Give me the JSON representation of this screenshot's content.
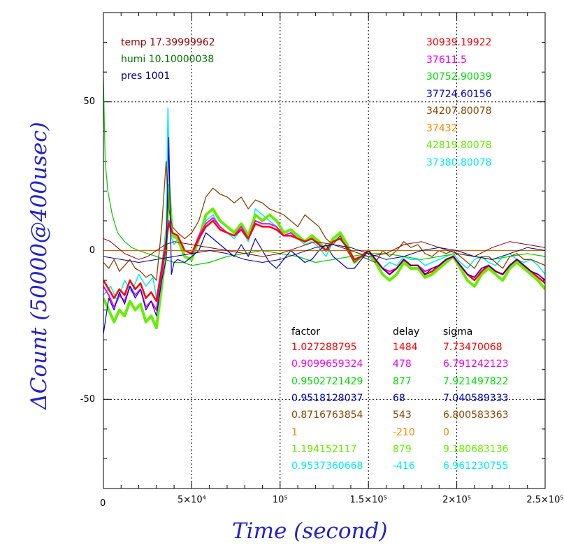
{
  "chart_data": {
    "type": "line",
    "xlabel": "Time (second)",
    "ylabel": "ΔCount (50000@400usec)",
    "xlim": [
      0,
      250000
    ],
    "ylim": [
      -80,
      80
    ],
    "grid": true,
    "x_ticks": [
      {
        "value": 0,
        "label": "0"
      },
      {
        "value": 50000,
        "label": "5×10⁴"
      },
      {
        "value": 100000,
        "label": "10⁵"
      },
      {
        "value": 150000,
        "label": "1.5×10⁵"
      },
      {
        "value": 200000,
        "label": "2×10⁵"
      },
      {
        "value": 250000,
        "label": "2.5×10⁵"
      }
    ],
    "y_ticks": [
      {
        "value": 50,
        "label": "50"
      },
      {
        "value": 0,
        "label": "0"
      },
      {
        "value": -50,
        "label": "-50"
      }
    ],
    "env_legend": [
      {
        "text": "temp 17.39999962",
        "color": "#990000"
      },
      {
        "text": "humi 10.10000038",
        "color": "#007700"
      },
      {
        "text": "pres 1001",
        "color": "#000088"
      }
    ],
    "count_legend": [
      {
        "text": "30939.19922",
        "color": "#ff0000"
      },
      {
        "text": "37611.5",
        "color": "#ee00ee"
      },
      {
        "text": "30752.90039",
        "color": "#00dd00"
      },
      {
        "text": "37724.60156",
        "color": "#0000cc"
      },
      {
        "text": "34207.80078",
        "color": "#884400"
      },
      {
        "text": "37432",
        "color": "#ff8800"
      },
      {
        "text": "42819.80078",
        "color": "#66ee00"
      },
      {
        "text": "37380.80078",
        "color": "#00eeee"
      }
    ],
    "table_headers": [
      "factor",
      "delay",
      "sigma"
    ],
    "table_rows": [
      {
        "factor": "1.027288795",
        "delay": "1484",
        "sigma": "7.73470068",
        "color": "#ff0000"
      },
      {
        "factor": "0.9099659324",
        "delay": "478",
        "sigma": "6.791242123",
        "color": "#ee00ee"
      },
      {
        "factor": "0.9502721429",
        "delay": "877",
        "sigma": "7.921497822",
        "color": "#00dd00"
      },
      {
        "factor": "0.9518128037",
        "delay": "68",
        "sigma": "7.040589333",
        "color": "#0000cc"
      },
      {
        "factor": "0.8716763854",
        "delay": "543",
        "sigma": "6.800583363",
        "color": "#884400"
      },
      {
        "factor": "1",
        "delay": "-210",
        "sigma": "0",
        "color": "#ff8800"
      },
      {
        "factor": "1.194152117",
        "delay": "879",
        "sigma": "9.180683136",
        "color": "#66ee00"
      },
      {
        "factor": "0.9537360668",
        "delay": "-416",
        "sigma": "6.961230755",
        "color": "#00eeee"
      }
    ],
    "series": [
      {
        "color": "#00eeee",
        "width": 1.5,
        "x": [
          0,
          4000,
          8000,
          12000,
          16000,
          20000,
          24000,
          28000,
          30000,
          32000,
          34000,
          35500,
          36500,
          38000,
          40000,
          42000,
          46000,
          50000,
          54000,
          58000,
          62000,
          66000,
          70000,
          74000,
          78000,
          82000,
          86000,
          90000,
          94000,
          98000,
          102000,
          106000,
          110000,
          114000,
          118000,
          122000,
          126000,
          130000,
          134000,
          138000,
          142000,
          146000,
          150000,
          154000,
          158000,
          162000,
          166000,
          170000,
          174000,
          178000,
          182000,
          186000,
          190000,
          194000,
          198000,
          202000,
          206000,
          210000,
          214000,
          218000,
          222000,
          226000,
          230000,
          234000,
          238000,
          242000,
          246000,
          250000
        ],
        "y": [
          -15,
          -12,
          -17,
          -10,
          -14,
          -8,
          -12,
          -9,
          -16,
          -10,
          0,
          8,
          48,
          5,
          2,
          4,
          -2,
          -3,
          3,
          10,
          12,
          8,
          6,
          4,
          7,
          3,
          14,
          12,
          10,
          8,
          5,
          6,
          4,
          2,
          3,
          1,
          -2,
          3,
          5,
          0,
          -4,
          -2,
          -2,
          -4,
          -6,
          -4,
          -5,
          -2,
          -3,
          -3,
          -5,
          -4,
          -3,
          -2,
          -1,
          -4,
          -6,
          -3,
          -2,
          -4,
          -5,
          -2,
          -1,
          -3,
          -4,
          -3,
          -5,
          -8
        ]
      },
      {
        "color": "#66ee00",
        "width": 4,
        "x": [
          0,
          3000,
          6000,
          9000,
          12000,
          15000,
          18000,
          21000,
          24000,
          27000,
          30000,
          33000,
          35500,
          37000,
          39000,
          42000,
          46000,
          50000,
          54000,
          58000,
          62000,
          66000,
          70000,
          74000,
          78000,
          82000,
          86000,
          90000,
          94000,
          98000,
          102000,
          106000,
          110000,
          114000,
          118000,
          122000,
          126000,
          130000,
          134000,
          138000,
          142000,
          146000,
          150000,
          154000,
          158000,
          162000,
          166000,
          170000,
          174000,
          178000,
          182000,
          186000,
          190000,
          194000,
          198000,
          202000,
          206000,
          210000,
          214000,
          218000,
          222000,
          226000,
          230000,
          234000,
          238000,
          242000,
          246000,
          250000
        ],
        "y": [
          -16,
          -20,
          -24,
          -20,
          -22,
          -17,
          -20,
          -18,
          -24,
          -22,
          -26,
          -12,
          0,
          22,
          5,
          4,
          -2,
          -3,
          4,
          12,
          14,
          10,
          8,
          6,
          9,
          5,
          12,
          10,
          12,
          10,
          6,
          7,
          5,
          3,
          5,
          3,
          0,
          4,
          6,
          2,
          -4,
          -2,
          0,
          -4,
          -8,
          -10,
          -8,
          -4,
          -6,
          -6,
          -9,
          -8,
          -6,
          -4,
          -2,
          -6,
          -10,
          -12,
          -8,
          -6,
          -8,
          -10,
          -6,
          -4,
          -6,
          -8,
          -10,
          -13
        ]
      },
      {
        "color": "#00cc00",
        "width": 1.2,
        "x": [
          0,
          1000,
          2500,
          5000,
          8000,
          12000,
          16000,
          20000,
          25000,
          30000,
          35000,
          40000,
          45000,
          50000,
          60000,
          70000,
          80000,
          90000,
          100000,
          110000,
          120000,
          130000,
          140000,
          150000,
          160000,
          170000,
          180000,
          190000,
          200000,
          210000,
          220000,
          230000,
          240000,
          250000
        ],
        "y": [
          58,
          30,
          20,
          12,
          6,
          3,
          1,
          0,
          -1,
          -2,
          -3,
          -4,
          -4,
          -5,
          -4,
          -2,
          -1,
          0,
          -1,
          -2,
          -4,
          -3,
          -2,
          -1,
          -1,
          -2,
          -3,
          -2,
          -1,
          -2,
          -3,
          -2,
          -1,
          -2
        ]
      },
      {
        "color": "#ee00ee",
        "width": 2,
        "x": [
          0,
          3000,
          6000,
          9000,
          12000,
          15000,
          18000,
          21000,
          24000,
          27000,
          30000,
          33000,
          35500,
          37000,
          39000,
          42000,
          46000,
          50000,
          54000,
          58000,
          62000,
          66000,
          70000,
          74000,
          78000,
          82000,
          86000,
          90000,
          94000,
          98000,
          102000,
          106000,
          110000,
          114000,
          118000,
          122000,
          126000,
          130000,
          134000,
          138000,
          142000,
          146000,
          150000,
          154000,
          158000,
          162000,
          166000,
          170000,
          174000,
          178000,
          182000,
          186000,
          190000,
          194000,
          198000,
          202000,
          206000,
          210000,
          214000,
          218000,
          222000,
          226000,
          230000,
          234000,
          238000,
          242000,
          246000,
          250000
        ],
        "y": [
          -12,
          -15,
          -19,
          -15,
          -17,
          -12,
          -15,
          -13,
          -19,
          -17,
          -20,
          -8,
          2,
          10,
          6,
          5,
          0,
          -1,
          5,
          9,
          11,
          8,
          6,
          5,
          8,
          4,
          10,
          9,
          9,
          8,
          5,
          6,
          4,
          3,
          4,
          2,
          0,
          3,
          4,
          1,
          -3,
          -2,
          0,
          -3,
          -6,
          -7,
          -6,
          -3,
          -5,
          -5,
          -7,
          -6,
          -5,
          -3,
          -2,
          -5,
          -8,
          -9,
          -6,
          -5,
          -7,
          -8,
          -5,
          -3,
          -5,
          -7,
          -8,
          -10
        ]
      },
      {
        "color": "#ff0000",
        "width": 2.5,
        "x": [
          0,
          3000,
          6000,
          9000,
          12000,
          15000,
          18000,
          21000,
          24000,
          27000,
          30000,
          33000,
          35500,
          37000,
          39000,
          42000,
          46000,
          50000,
          54000,
          58000,
          62000,
          66000,
          70000,
          74000,
          78000,
          82000,
          86000,
          90000,
          94000,
          98000,
          102000,
          106000,
          110000,
          114000,
          118000,
          122000,
          126000,
          130000,
          134000,
          138000,
          142000,
          146000,
          150000,
          154000,
          158000,
          162000,
          166000,
          170000,
          174000,
          178000,
          182000,
          186000,
          190000,
          194000,
          198000,
          202000,
          206000,
          210000,
          214000,
          218000,
          222000,
          226000,
          230000,
          234000,
          238000,
          242000,
          246000,
          250000
        ],
        "y": [
          -10,
          -13,
          -16,
          -13,
          -15,
          -10,
          -13,
          -11,
          -16,
          -14,
          -17,
          -6,
          3,
          9,
          6,
          5,
          0,
          -1,
          4,
          8,
          10,
          7,
          6,
          5,
          7,
          4,
          9,
          8,
          8,
          7,
          5,
          5,
          4,
          3,
          4,
          2,
          0,
          3,
          4,
          1,
          -3,
          -2,
          0,
          -3,
          -6,
          -8,
          -6,
          -3,
          -5,
          -5,
          -8,
          -7,
          -5,
          -3,
          -2,
          -5,
          -8,
          -10,
          -7,
          -5,
          -7,
          -8,
          -5,
          -3,
          -5,
          -7,
          -9,
          -11
        ]
      },
      {
        "color": "#884400",
        "width": 1.3,
        "x": [
          0,
          3000,
          6000,
          9000,
          12000,
          15000,
          18000,
          21000,
          24000,
          27000,
          30000,
          33000,
          35500,
          37000,
          39000,
          42000,
          46000,
          50000,
          54000,
          58000,
          62000,
          66000,
          70000,
          74000,
          78000,
          82000,
          86000,
          90000,
          94000,
          98000,
          102000,
          106000,
          110000,
          114000,
          118000,
          122000,
          126000,
          130000,
          134000,
          138000,
          142000,
          146000,
          150000,
          154000,
          158000,
          162000,
          166000,
          170000,
          174000,
          178000,
          182000,
          186000,
          190000,
          194000,
          198000,
          202000,
          206000,
          210000,
          214000,
          218000,
          222000,
          226000,
          230000,
          234000,
          238000,
          242000,
          246000,
          250000
        ],
        "y": [
          -4,
          -6,
          -3,
          -7,
          -5,
          -3,
          -6,
          -7,
          -9,
          -8,
          -10,
          8,
          30,
          14,
          8,
          6,
          4,
          6,
          10,
          18,
          21,
          19,
          18,
          16,
          18,
          14,
          17,
          16,
          14,
          13,
          12,
          10,
          8,
          12,
          10,
          8,
          4,
          2,
          5,
          0,
          -4,
          -2,
          -3,
          -4,
          0,
          -2,
          0,
          3,
          1,
          2,
          -1,
          -2,
          0,
          -1,
          0,
          -2,
          -4,
          -6,
          -2,
          -2,
          -4,
          -6,
          -2,
          -1,
          -3,
          -3,
          -4,
          -5
        ]
      },
      {
        "color": "#0000cc",
        "width": 1.2,
        "x": [
          0,
          3000,
          6000,
          9000,
          12000,
          15000,
          18000,
          21000,
          24000,
          27000,
          30000,
          33000,
          35500,
          37000,
          38500,
          40000,
          42000,
          46000,
          50000,
          54000,
          58000,
          62000,
          66000,
          70000,
          74000,
          78000,
          82000,
          86000,
          90000,
          94000,
          98000,
          102000,
          106000,
          110000,
          114000,
          118000,
          122000,
          126000,
          130000,
          134000,
          138000,
          142000,
          146000,
          150000,
          154000,
          158000,
          162000,
          166000,
          170000,
          174000,
          178000,
          182000,
          186000,
          190000,
          194000,
          198000,
          202000,
          206000,
          210000,
          214000,
          218000,
          222000,
          226000,
          230000,
          234000,
          238000,
          242000,
          246000,
          250000
        ],
        "y": [
          -28,
          -16,
          -20,
          -14,
          -18,
          -12,
          -16,
          -13,
          -20,
          -17,
          -22,
          -10,
          -3,
          38,
          -8,
          -4,
          -3,
          -4,
          -2,
          0,
          6,
          4,
          2,
          0,
          -2,
          2,
          -2,
          4,
          0,
          -4,
          -6,
          -3,
          0,
          -2,
          -4,
          -3,
          0,
          2,
          -2,
          -4,
          -6,
          -6,
          -3,
          0,
          -3,
          -6,
          -8,
          -6,
          -3,
          -5,
          -5,
          -8,
          -6,
          -5,
          -3,
          -2,
          -5,
          -8,
          -9,
          -6,
          -5,
          -7,
          -8,
          -5,
          -3,
          -5,
          -7,
          -8,
          -10
        ]
      },
      {
        "color": "#cc6600",
        "width": 1.2,
        "x": [
          0,
          250000
        ],
        "y": [
          0,
          0
        ]
      },
      {
        "color": "#880000",
        "width": 1,
        "x": [
          0,
          4000,
          8000,
          12000,
          16000,
          20000,
          25000,
          30000,
          35000,
          40000,
          50000,
          60000,
          70000,
          80000,
          90000,
          100000,
          110000,
          120000,
          130000,
          140000,
          150000,
          160000,
          170000,
          180000,
          190000,
          200000,
          210000,
          220000,
          230000,
          240000,
          250000
        ],
        "y": [
          4,
          3,
          1,
          -1,
          -2,
          -3,
          -2,
          0,
          2,
          3,
          2,
          1,
          0,
          -1,
          -2,
          -1,
          1,
          3,
          2,
          0,
          -2,
          -1,
          2,
          3,
          1,
          -1,
          -2,
          1,
          3,
          2,
          1
        ]
      },
      {
        "color": "#000088",
        "width": 1,
        "x": [
          0,
          10000,
          20000,
          30000,
          40000,
          50000,
          60000,
          70000,
          80000,
          90000,
          100000,
          110000,
          120000,
          130000,
          140000,
          150000,
          160000,
          170000,
          180000,
          190000,
          200000,
          210000,
          220000,
          230000,
          240000,
          250000
        ],
        "y": [
          -2,
          -3,
          -4,
          -3,
          -2,
          -1,
          0,
          -1,
          -3,
          -4,
          -3,
          -1,
          1,
          2,
          1,
          -1,
          -3,
          -2,
          0,
          1,
          0,
          -2,
          -3,
          -1,
          1,
          0
        ]
      }
    ]
  }
}
